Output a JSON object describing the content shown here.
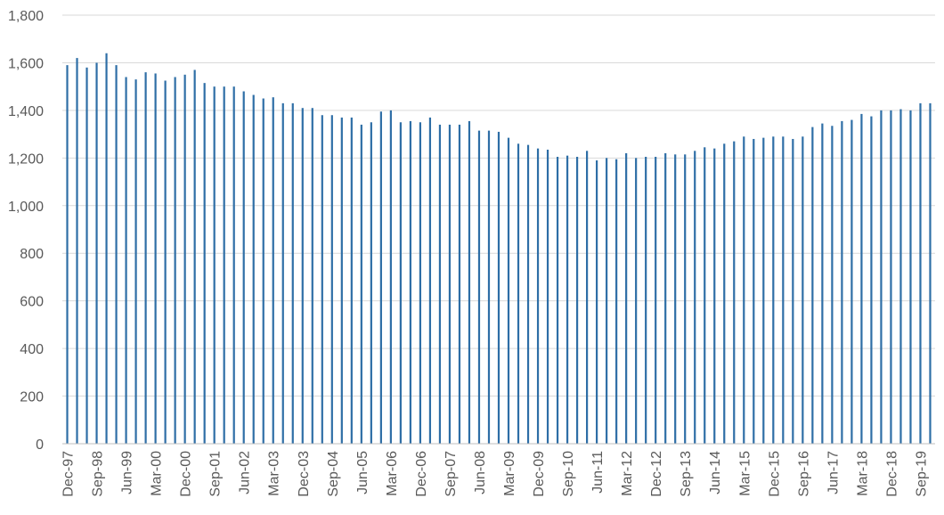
{
  "chart_data": {
    "type": "bar",
    "title": "",
    "xlabel": "",
    "ylabel": "",
    "ylim": [
      0,
      1800
    ],
    "yticks": [
      "0",
      "200",
      "400",
      "600",
      "800",
      "1,000",
      "1,200",
      "1,400",
      "1,600",
      "1,800"
    ],
    "xticks": [
      "Dec-97",
      "Sep-98",
      "Jun-99",
      "Mar-00",
      "Dec-00",
      "Sep-01",
      "Jun-02",
      "Mar-03",
      "Dec-03",
      "Sep-04",
      "Jun-05",
      "Mar-06",
      "Dec-06",
      "Sep-07",
      "Jun-08",
      "Mar-09",
      "Dec-09",
      "Sep-10",
      "Jun-11",
      "Mar-12",
      "Dec-12",
      "Sep-13",
      "Jun-14",
      "Mar-15",
      "Dec-15",
      "Sep-16",
      "Jun-17",
      "Mar-18",
      "Dec-18",
      "Sep-19"
    ],
    "grid": true,
    "legend": "none",
    "color": "#2e6ea6",
    "categories": [
      "Dec-97",
      "Mar-98",
      "Jun-98",
      "Sep-98",
      "Dec-98",
      "Mar-99",
      "Jun-99",
      "Sep-99",
      "Dec-99",
      "Mar-00",
      "Jun-00",
      "Sep-00",
      "Dec-00",
      "Mar-01",
      "Jun-01",
      "Sep-01",
      "Dec-01",
      "Mar-02",
      "Jun-02",
      "Sep-02",
      "Dec-02",
      "Mar-03",
      "Jun-03",
      "Sep-03",
      "Dec-03",
      "Mar-04",
      "Jun-04",
      "Sep-04",
      "Dec-04",
      "Mar-05",
      "Jun-05",
      "Sep-05",
      "Dec-05",
      "Mar-06",
      "Jun-06",
      "Sep-06",
      "Dec-06",
      "Mar-07",
      "Jun-07",
      "Sep-07",
      "Dec-07",
      "Mar-08",
      "Jun-08",
      "Sep-08",
      "Dec-08",
      "Mar-09",
      "Jun-09",
      "Sep-09",
      "Dec-09",
      "Mar-10",
      "Jun-10",
      "Sep-10",
      "Dec-10",
      "Mar-11",
      "Jun-11",
      "Sep-11",
      "Dec-11",
      "Mar-12",
      "Jun-12",
      "Sep-12",
      "Dec-12",
      "Mar-13",
      "Jun-13",
      "Sep-13",
      "Dec-13",
      "Mar-14",
      "Jun-14",
      "Sep-14",
      "Dec-14",
      "Mar-15",
      "Jun-15",
      "Sep-15",
      "Dec-15",
      "Mar-16",
      "Jun-16",
      "Sep-16",
      "Dec-16",
      "Mar-17",
      "Jun-17",
      "Sep-17",
      "Dec-17",
      "Mar-18",
      "Jun-18",
      "Sep-18",
      "Dec-18",
      "Mar-19",
      "Jun-19",
      "Sep-19",
      "Dec-19"
    ],
    "values": [
      1590,
      1620,
      1580,
      1600,
      1640,
      1590,
      1540,
      1530,
      1560,
      1555,
      1525,
      1540,
      1550,
      1570,
      1515,
      1500,
      1500,
      1500,
      1480,
      1465,
      1450,
      1455,
      1430,
      1430,
      1410,
      1410,
      1380,
      1380,
      1370,
      1370,
      1340,
      1350,
      1395,
      1400,
      1350,
      1355,
      1350,
      1370,
      1340,
      1340,
      1340,
      1355,
      1315,
      1315,
      1310,
      1285,
      1260,
      1255,
      1240,
      1235,
      1205,
      1210,
      1205,
      1230,
      1190,
      1200,
      1195,
      1220,
      1200,
      1205,
      1205,
      1220,
      1215,
      1215,
      1230,
      1245,
      1240,
      1260,
      1270,
      1290,
      1280,
      1285,
      1290,
      1290,
      1280,
      1290,
      1330,
      1345,
      1335,
      1355,
      1360,
      1385,
      1375,
      1400,
      1400,
      1405,
      1400,
      1430,
      1430
    ]
  }
}
